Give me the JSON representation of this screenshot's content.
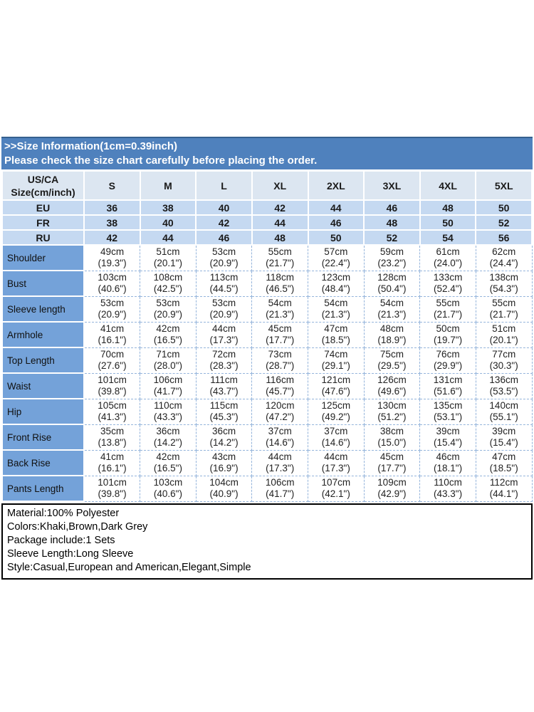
{
  "banner": {
    "line1": ">>Size Information(1cm=0.39inch)",
    "line2": "Please check the size chart carefully before placing the order."
  },
  "table": {
    "corner_label": "US/CA\nSize(cm/inch)",
    "sizes": [
      "S",
      "M",
      "L",
      "XL",
      "2XL",
      "3XL",
      "4XL",
      "5XL"
    ],
    "region_rows": [
      {
        "label": "EU",
        "values": [
          "36",
          "38",
          "40",
          "42",
          "44",
          "46",
          "48",
          "50"
        ]
      },
      {
        "label": "FR",
        "values": [
          "38",
          "40",
          "42",
          "44",
          "46",
          "48",
          "50",
          "52"
        ]
      },
      {
        "label": "RU",
        "values": [
          "42",
          "44",
          "46",
          "48",
          "50",
          "52",
          "54",
          "56"
        ]
      }
    ],
    "measurement_rows": [
      {
        "label": "Shoulder",
        "values": [
          "49cm\n(19.3\")",
          "51cm\n(20.1\")",
          "53cm\n(20.9\")",
          "55cm\n(21.7\")",
          "57cm\n(22.4\")",
          "59cm\n(23.2\")",
          "61cm\n(24.0\")",
          "62cm\n(24.4\")"
        ]
      },
      {
        "label": "Bust",
        "values": [
          "103cm\n(40.6\")",
          "108cm\n(42.5\")",
          "113cm\n(44.5\")",
          "118cm\n(46.5\")",
          "123cm\n(48.4\")",
          "128cm\n(50.4\")",
          "133cm\n(52.4\")",
          "138cm\n(54.3\")"
        ]
      },
      {
        "label": "Sleeve length",
        "values": [
          "53cm\n(20.9\")",
          "53cm\n(20.9\")",
          "53cm\n(20.9\")",
          "54cm\n(21.3\")",
          "54cm\n(21.3\")",
          "54cm\n(21.3\")",
          "55cm\n(21.7\")",
          "55cm\n(21.7\")"
        ]
      },
      {
        "label": "Armhole",
        "values": [
          "41cm\n(16.1\")",
          "42cm\n(16.5\")",
          "44cm\n(17.3\")",
          "45cm\n(17.7\")",
          "47cm\n(18.5\")",
          "48cm\n(18.9\")",
          "50cm\n(19.7\")",
          "51cm\n(20.1\")"
        ]
      },
      {
        "label": "Top Length",
        "values": [
          "70cm\n(27.6\")",
          "71cm\n(28.0\")",
          "72cm\n(28.3\")",
          "73cm\n(28.7\")",
          "74cm\n(29.1\")",
          "75cm\n(29.5\")",
          "76cm\n(29.9\")",
          "77cm\n(30.3\")"
        ]
      },
      {
        "label": "Waist",
        "values": [
          "101cm\n(39.8\")",
          "106cm\n(41.7\")",
          "111cm\n(43.7\")",
          "116cm\n(45.7\")",
          "121cm\n(47.6\")",
          "126cm\n(49.6\")",
          "131cm\n(51.6\")",
          "136cm\n(53.5\")"
        ]
      },
      {
        "label": "Hip",
        "values": [
          "105cm\n(41.3\")",
          "110cm\n(43.3\")",
          "115cm\n(45.3\")",
          "120cm\n(47.2\")",
          "125cm\n(49.2\")",
          "130cm\n(51.2\")",
          "135cm\n(53.1\")",
          "140cm\n(55.1\")"
        ]
      },
      {
        "label": "Front Rise",
        "values": [
          "35cm\n(13.8\")",
          "36cm\n(14.2\")",
          "36cm\n(14.2\")",
          "37cm\n(14.6\")",
          "37cm\n(14.6\")",
          "38cm\n(15.0\")",
          "39cm\n(15.4\")",
          "39cm\n(15.4\")"
        ]
      },
      {
        "label": "Back Rise",
        "values": [
          "41cm\n(16.1\")",
          "42cm\n(16.5\")",
          "43cm\n(16.9\")",
          "44cm\n(17.3\")",
          "44cm\n(17.3\")",
          "45cm\n(17.7\")",
          "46cm\n(18.1\")",
          "47cm\n(18.5\")"
        ]
      },
      {
        "label": "Pants Length",
        "values": [
          "101cm\n(39.8\")",
          "103cm\n(40.6\")",
          "104cm\n(40.9\")",
          "106cm\n(41.7\")",
          "107cm\n(42.1\")",
          "109cm\n(42.9\")",
          "110cm\n(43.3\")",
          "112cm\n(44.1\")"
        ]
      }
    ]
  },
  "footer": {
    "lines": [
      "Material:100% Polyester",
      "Colors:Khaki,Brown,Dark Grey",
      "Package include:1 Sets",
      "Sleeve Length:Long Sleeve",
      "Style:Casual,European and American,Elegant,Simple"
    ]
  },
  "colors": {
    "banner_bg": "#4f81bd",
    "banner_text": "#ffffff",
    "header_row_bg": "#dce6f1",
    "region_row_bg": "#c5d9f1",
    "label_cell_bg": "#74a2d9",
    "grid_line": "#ffffff",
    "data_grid_line": "#94b4db",
    "text": "#1a1a1a"
  }
}
